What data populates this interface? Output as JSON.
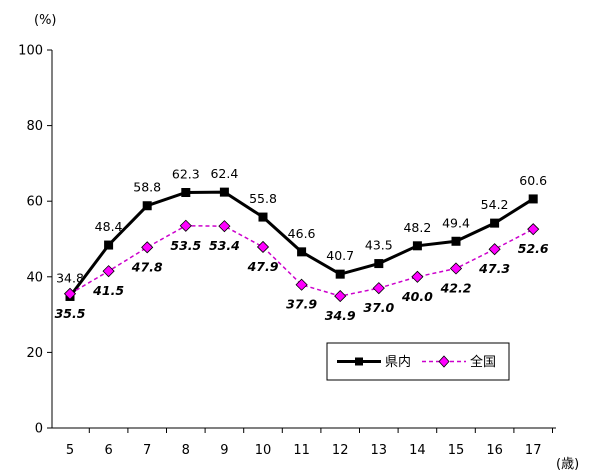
{
  "chart_data": {
    "type": "line",
    "x_unit": "(歳)",
    "y_unit": "(%)",
    "categories": [
      "5",
      "6",
      "7",
      "8",
      "9",
      "10",
      "11",
      "12",
      "13",
      "14",
      "15",
      "16",
      "17"
    ],
    "ylim": [
      0,
      100
    ],
    "yticks": [
      0,
      20,
      40,
      60,
      80,
      100
    ],
    "grid": false,
    "legend_position": "bottom-right",
    "series": [
      {
        "name": "県内",
        "color": "#000000",
        "line_style": "solid",
        "marker": "square",
        "values": [
          34.8,
          48.4,
          58.8,
          62.3,
          62.4,
          55.8,
          46.6,
          40.7,
          43.5,
          48.2,
          49.4,
          54.2,
          60.6
        ],
        "labels": [
          "34.8",
          "48.4",
          "58.8",
          "62.3",
          "62.4",
          "55.8",
          "46.6",
          "40.7",
          "43.5",
          "48.2",
          "49.4",
          "54.2",
          "60.6"
        ]
      },
      {
        "name": "全国",
        "color": "#cc00cc",
        "line_style": "dashed",
        "marker": "diamond",
        "values": [
          35.5,
          41.5,
          47.8,
          53.5,
          53.4,
          47.9,
          37.9,
          34.9,
          37.0,
          40.0,
          42.2,
          47.3,
          52.6
        ],
        "labels": [
          "35.5",
          "41.5",
          "47.8",
          "53.5",
          "53.4",
          "47.9",
          "37.9",
          "34.9",
          "37.0",
          "40.0",
          "42.2",
          "47.3",
          "52.6"
        ]
      }
    ]
  }
}
